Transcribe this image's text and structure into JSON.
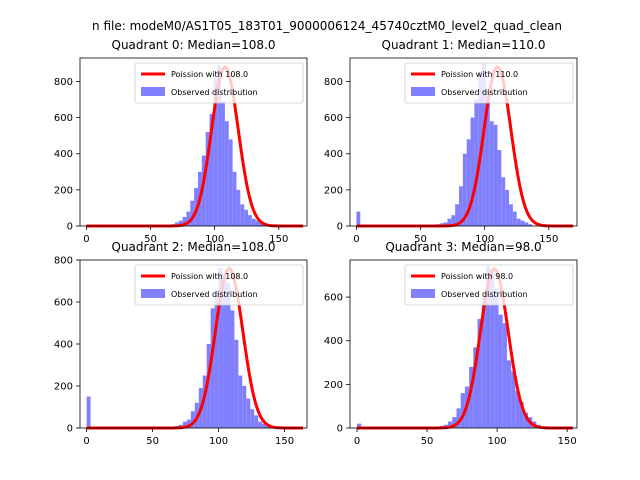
{
  "suptitle": "n file: modeM0/AS1T05_183T01_9000006124_45740cztM0_level2_quad_clean",
  "colors": {
    "bar": "#8080ff",
    "curve": "#ff0000",
    "curve_alpha_band": "#ff7070"
  },
  "chart_data": [
    {
      "type": "bar",
      "title": "Quadrant 0: Median=108.0",
      "legend": {
        "placement": "upper-right",
        "entries": [
          "Poission with 108.0",
          "Observed distribution"
        ]
      },
      "xlim": [
        -5,
        172
      ],
      "ylim": [
        0,
        930
      ],
      "xticks": [
        0,
        50,
        100,
        150
      ],
      "yticks": [
        0,
        200,
        400,
        600,
        800
      ],
      "median": 108.0,
      "curve_peak": 880,
      "bins_start": 60,
      "bin_width": 3,
      "values": [
        5,
        8,
        10,
        20,
        30,
        50,
        80,
        140,
        210,
        300,
        390,
        520,
        620,
        820,
        890,
        690,
        580,
        480,
        300,
        200,
        120,
        90,
        60,
        40,
        30,
        20,
        10
      ],
      "zero_bin": 0
    },
    {
      "type": "bar",
      "title": "Quadrant 1: Median=110.0",
      "legend": {
        "placement": "upper-right",
        "entries": [
          "Poission with 110.0",
          "Observed distribution"
        ]
      },
      "xlim": [
        -5,
        172
      ],
      "ylim": [
        0,
        930
      ],
      "xticks": [
        0,
        50,
        100,
        150
      ],
      "yticks": [
        0,
        200,
        400,
        600,
        800
      ],
      "median": 110.0,
      "curve_peak": 880,
      "bins_start": 62,
      "bin_width": 3,
      "values": [
        10,
        15,
        20,
        40,
        60,
        120,
        220,
        400,
        480,
        600,
        700,
        850,
        900,
        750,
        580,
        560,
        420,
        270,
        200,
        120,
        80,
        40,
        30,
        20,
        10
      ],
      "zero_bin": 80
    },
    {
      "type": "bar",
      "title": "Quadrant 2: Median=108.0",
      "legend": {
        "placement": "upper-right",
        "entries": [
          "Poission with 108.0",
          "Observed distribution"
        ]
      },
      "xlim": [
        -5,
        167
      ],
      "ylim": [
        0,
        800
      ],
      "xticks": [
        0,
        50,
        100,
        150
      ],
      "yticks": [
        0,
        200,
        400,
        600,
        800
      ],
      "median": 108.0,
      "curve_peak": 760,
      "bins_start": 64,
      "bin_width": 3,
      "values": [
        5,
        10,
        15,
        30,
        40,
        80,
        120,
        190,
        250,
        400,
        570,
        650,
        760,
        700,
        690,
        560,
        420,
        250,
        200,
        140,
        90,
        60,
        30,
        20,
        10
      ],
      "zero_bin": 150
    },
    {
      "type": "bar",
      "title": "Quadrant 3: Median=98.0",
      "legend": {
        "placement": "upper-right",
        "entries": [
          "Poission with 98.0",
          "Observed distribution"
        ]
      },
      "xlim": [
        -5,
        157
      ],
      "ylim": [
        0,
        770
      ],
      "xticks": [
        0,
        50,
        100,
        150
      ],
      "yticks": [
        0,
        200,
        400,
        600
      ],
      "median": 98.0,
      "curve_peak": 730,
      "bins_start": 56,
      "bin_width": 3,
      "values": [
        5,
        10,
        15,
        30,
        50,
        90,
        160,
        190,
        280,
        370,
        500,
        600,
        740,
        720,
        640,
        520,
        480,
        310,
        260,
        170,
        120,
        70,
        50,
        30,
        15
      ],
      "zero_bin": 20
    }
  ]
}
